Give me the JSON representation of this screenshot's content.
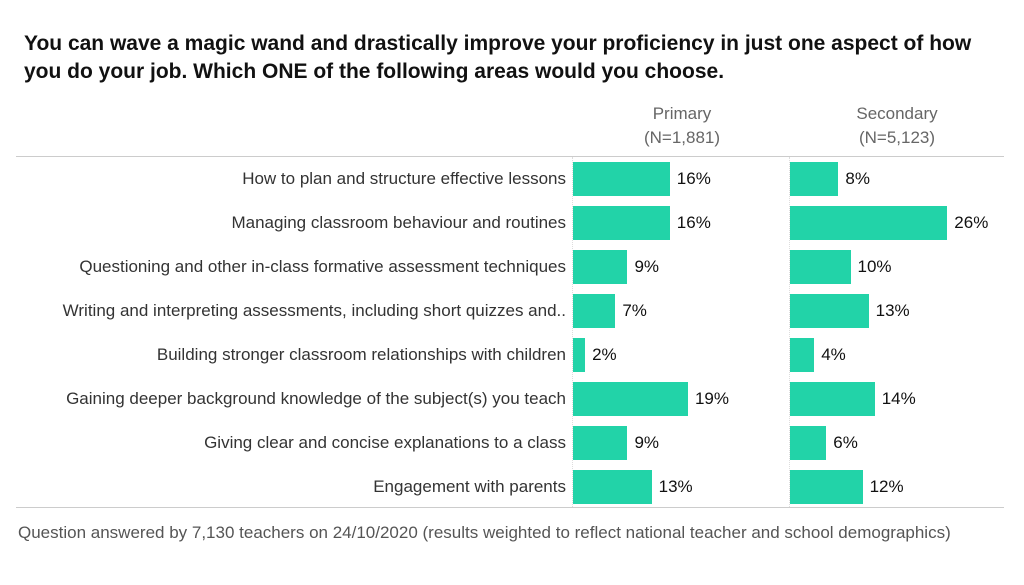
{
  "chart_data": {
    "type": "bar",
    "title": "You can wave a magic wand and drastically improve your proficiency in just one aspect of how you do your job. Which ONE of the following areas would you choose.",
    "categories": [
      "How to plan and structure effective lessons",
      "Managing classroom behaviour and routines",
      "Questioning and other in-class formative assessment techniques",
      "Writing and interpreting assessments, including short quizzes and..",
      "Building stronger classroom relationships with children",
      "Gaining deeper background knowledge of the subject(s) you teach",
      "Giving clear and concise explanations to a class",
      "Engagement with parents"
    ],
    "series": [
      {
        "name": "Primary",
        "n": "(N=1,881)",
        "values": [
          16,
          16,
          9,
          7,
          2,
          19,
          9,
          13
        ]
      },
      {
        "name": "Secondary",
        "n": "(N=5,123)",
        "values": [
          8,
          26,
          10,
          13,
          4,
          14,
          6,
          12
        ]
      }
    ],
    "unit": "%",
    "color": "#22d3a8",
    "footnote": "Question answered by 7,130 teachers on 24/10/2020 (results weighted to reflect national teacher and school demographics)"
  }
}
